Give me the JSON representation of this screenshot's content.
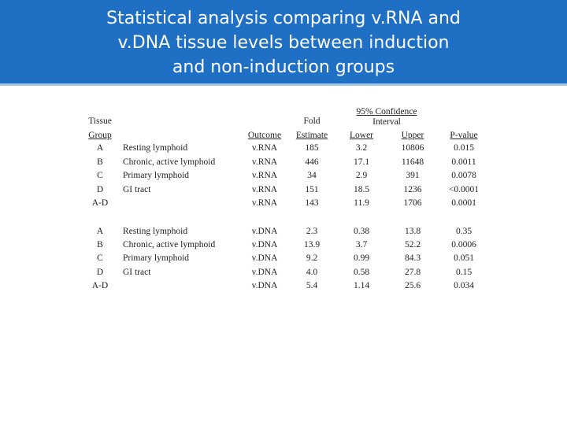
{
  "slide": {
    "title_line1": "Statistical analysis comparing v.RNA and",
    "title_line2": "v.DNA tissue levels between induction",
    "title_line3": "and non-induction groups"
  },
  "table": {
    "headers": {
      "tissue": "Tissue",
      "group": "Group",
      "outcome": "Outcome",
      "fold": "Fold",
      "estimate": "Estimate",
      "ci_top": "95% Confidence",
      "ci_interval": "Interval",
      "lower": "Lower",
      "upper": "Upper",
      "pvalue": "P-value"
    },
    "rna_rows": [
      {
        "group": "A",
        "tissue": "Resting lymphoid",
        "outcome": "v.RNA",
        "estimate": "185",
        "lower": "3.2",
        "upper": "10806",
        "p": "0.015"
      },
      {
        "group": "B",
        "tissue": "Chronic, active lymphoid",
        "outcome": "v.RNA",
        "estimate": "446",
        "lower": "17.1",
        "upper": "11648",
        "p": "0.0011"
      },
      {
        "group": "C",
        "tissue": "Primary lymphoid",
        "outcome": "v.RNA",
        "estimate": "34",
        "lower": "2.9",
        "upper": "391",
        "p": "0.0078"
      },
      {
        "group": "D",
        "tissue": "GI tract",
        "outcome": "v.RNA",
        "estimate": "151",
        "lower": "18.5",
        "upper": "1236",
        "p": "<0.0001"
      },
      {
        "group": "A-D",
        "tissue": "",
        "outcome": "v.RNA",
        "estimate": "143",
        "lower": "11.9",
        "upper": "1706",
        "p": "0.0001"
      }
    ],
    "dna_rows": [
      {
        "group": "A",
        "tissue": "Resting lymphoid",
        "outcome": "v.DNA",
        "estimate": "2.3",
        "lower": "0.38",
        "upper": "13.8",
        "p": "0.35"
      },
      {
        "group": "B",
        "tissue": "Chronic, active lymphoid",
        "outcome": "v.DNA",
        "estimate": "13.9",
        "lower": "3.7",
        "upper": "52.2",
        "p": "0.0006"
      },
      {
        "group": "C",
        "tissue": "Primary lymphoid",
        "outcome": "v.DNA",
        "estimate": "9.2",
        "lower": "0.99",
        "upper": "84.3",
        "p": "0.051"
      },
      {
        "group": "D",
        "tissue": "GI tract",
        "outcome": "v.DNA",
        "estimate": "4.0",
        "lower": "0.58",
        "upper": "27.8",
        "p": "0.15"
      },
      {
        "group": "A-D",
        "tissue": "",
        "outcome": "v.DNA",
        "estimate": "5.4",
        "lower": "1.14",
        "upper": "25.6",
        "p": "0.034"
      }
    ]
  }
}
